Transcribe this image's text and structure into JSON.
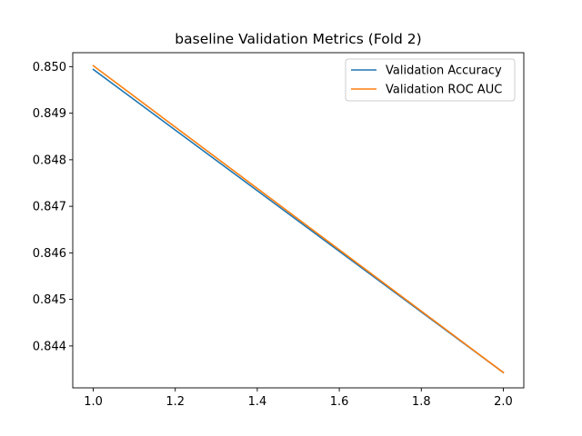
{
  "chart_data": {
    "type": "line",
    "title": "baseline Validation Metrics (Fold 2)",
    "xlabel": "",
    "ylabel": "",
    "xlim": [
      0.95,
      2.05
    ],
    "ylim": [
      0.8431,
      0.8503
    ],
    "x_ticks": [
      1.0,
      1.2,
      1.4,
      1.6,
      1.8,
      2.0
    ],
    "x_tick_labels": [
      "1.0",
      "1.2",
      "1.4",
      "1.6",
      "1.8",
      "2.0"
    ],
    "y_ticks": [
      0.844,
      0.845,
      0.846,
      0.847,
      0.848,
      0.849,
      0.85
    ],
    "y_tick_labels": [
      "0.844",
      "0.845",
      "0.846",
      "0.847",
      "0.848",
      "0.849",
      "0.850"
    ],
    "grid": false,
    "legend_position": "top-right",
    "series": [
      {
        "name": "Validation Accuracy",
        "color": "#1f77b4",
        "x": [
          1.0,
          2.0
        ],
        "y": [
          0.84994,
          0.84343
        ]
      },
      {
        "name": "Validation ROC AUC",
        "color": "#ff7f0e",
        "x": [
          1.0,
          2.0
        ],
        "y": [
          0.85002,
          0.84343
        ]
      }
    ]
  }
}
